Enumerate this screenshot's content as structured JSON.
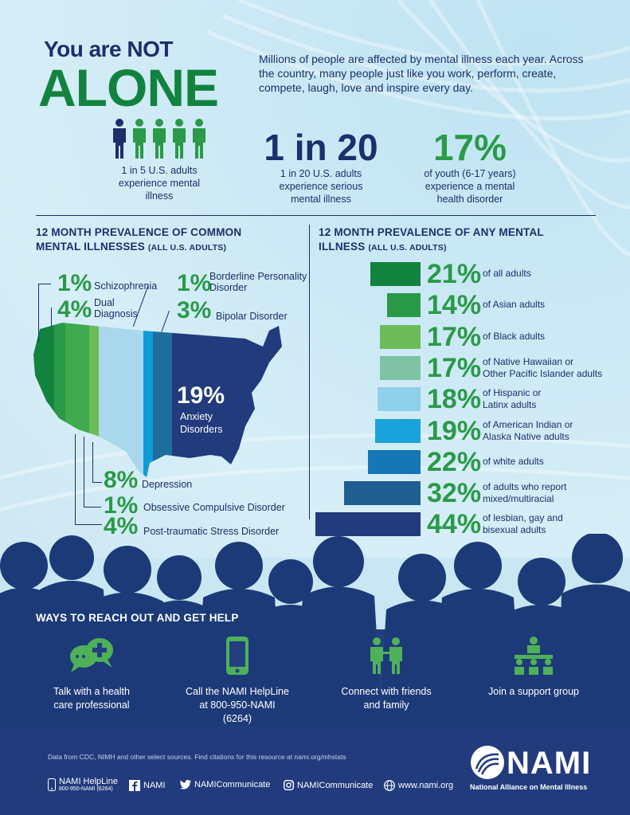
{
  "header": {
    "title_small": "You are NOT",
    "title_big": "ALONE",
    "intro": "Millions of people are affected by mental illness each year. Across the country, many people just like you work, perform, create, compete, laugh, love and inspire every day."
  },
  "stats": [
    {
      "big": "",
      "text": "1 in 5 U.S. adults experience mental illness",
      "icon": "people-icon"
    },
    {
      "big": "1 in 20",
      "text": "1 in 20 U.S. adults experience serious mental illness"
    },
    {
      "big": "17%",
      "text": "of youth (6-17 years) experience a mental health disorder"
    }
  ],
  "left_section": {
    "heading": "12 MONTH PREVALENCE OF COMMON MENTAL ILLNESSES",
    "sub": "(ALL U.S. ADULTS)",
    "items": [
      {
        "pct": "1%",
        "label": "Schizophrenia",
        "color": "#12833f"
      },
      {
        "pct": "4%",
        "label": "Dual Diagnosis",
        "color": "#2a9a48"
      },
      {
        "pct": "1%",
        "label": "Borderline Personality Disorder",
        "color": "#6cbd5a"
      },
      {
        "pct": "3%",
        "label": "Bipolar Disorder",
        "color": "#1f6d9c"
      },
      {
        "pct": "19%",
        "label": "Anxiety Disorders",
        "color": "#213b7d"
      },
      {
        "pct": "8%",
        "label": "Depression",
        "color": "#a9d8ec"
      },
      {
        "pct": "1%",
        "label": "Obsessive Compulsive Disorder",
        "color": "#0f9bd8"
      },
      {
        "pct": "4%",
        "label": "Post-traumatic Stress Disorder",
        "color": "#1f6d9c"
      }
    ]
  },
  "right_section": {
    "heading": "12 MONTH PREVALENCE OF ANY MENTAL ILLNESS",
    "sub": "(ALL U.S. ADULTS)",
    "chart_data": {
      "type": "bar",
      "categories": [
        "of all adults",
        "of Asian adults",
        "of Black adults",
        "of Native Hawaiian or Other Pacific Islander adults",
        "of Hispanic or Latinx adults",
        "of American Indian or Alaska Native adults",
        "of white adults",
        "of adults who report mixed/multiracial",
        "of lesbian, gay and bisexual adults"
      ],
      "values": [
        21,
        14,
        17,
        17,
        18,
        19,
        22,
        32,
        44
      ],
      "labels": [
        "21%",
        "14%",
        "17%",
        "17%",
        "18%",
        "19%",
        "22%",
        "32%",
        "44%"
      ],
      "label_lines": [
        [
          "of all adults"
        ],
        [
          "of Asian adults"
        ],
        [
          "of Black adults"
        ],
        [
          "of Native Hawaiian or",
          "Other Pacific Islander adults"
        ],
        [
          "of Hispanic or",
          "Latinx adults"
        ],
        [
          "of American Indian or",
          "Alaska Native adults"
        ],
        [
          "of white adults"
        ],
        [
          "of adults who report",
          "mixed/multiracial"
        ],
        [
          "of lesbian, gay and",
          "bisexual adults"
        ]
      ],
      "colors": [
        "#12833f",
        "#2a9a48",
        "#6cbd5a",
        "#7ec4a4",
        "#8fd0ea",
        "#1aa3db",
        "#1577b4",
        "#1f5f8f",
        "#213b7d"
      ]
    }
  },
  "ways": {
    "heading": "WAYS TO REACH OUT AND GET HELP",
    "items": [
      {
        "label": "Talk with a health care professional",
        "icon": "chat-plus-icon"
      },
      {
        "label": "Call the NAMI HelpLine at 800-950-NAMI (6264)",
        "icon": "phone-icon"
      },
      {
        "label": "Connect with friends and family",
        "icon": "people-connect-icon"
      },
      {
        "label": "Join a support group",
        "icon": "support-group-icon"
      }
    ]
  },
  "footer": {
    "source": "Data from CDC, NIMH and other select sources. Find citations for this resource at nami.org/mhstats",
    "helpline": "NAMI HelpLine",
    "helpline_number": "800-950-NAMI (6264)",
    "facebook": "NAMI",
    "twitter": "NAMICommunicate",
    "instagram": "NAMICommunicate",
    "website": "www.nami.org",
    "logo_word": "NAMI",
    "logo_full": "National Alliance on Mental Illness"
  }
}
